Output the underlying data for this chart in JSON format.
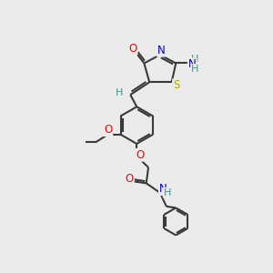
{
  "bg_color": "#ebebeb",
  "bond_color": "#3a3a3a",
  "atom_colors": {
    "O": "#ff0000",
    "N": "#0000cc",
    "S": "#aaaa00",
    "H": "#4a9090",
    "C": "#3a3a3a"
  }
}
